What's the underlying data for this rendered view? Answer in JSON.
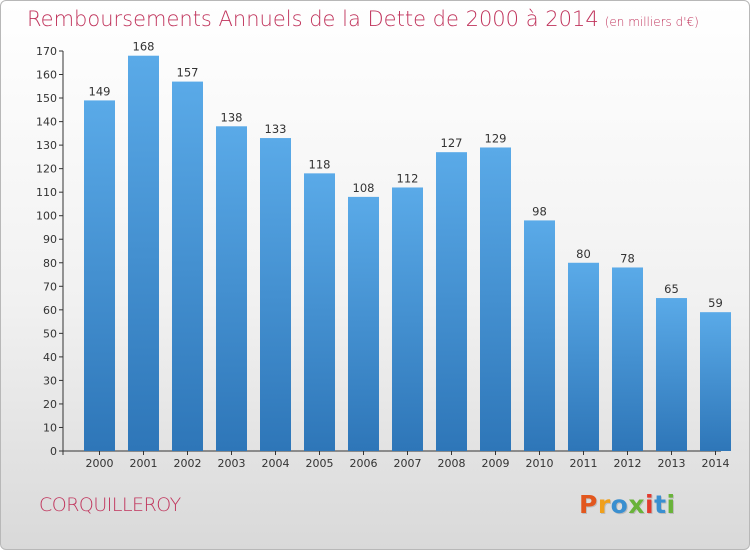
{
  "title": "Remboursements Annuels de la Dette de 2000 à 2014",
  "unit": "(en milliers d'€)",
  "city": "CORQUILLEROY",
  "logo": "Proxiti",
  "colors": {
    "title": "#c0345c",
    "bar_top": "#5aaae8",
    "bar_bottom": "#2e76b8",
    "logo_letters": [
      "#e2571e",
      "#f0a01c",
      "#3a8fd0",
      "#69b33a",
      "#e23a2e",
      "#3a8fd0",
      "#69b33a"
    ]
  },
  "chart_data": {
    "type": "bar",
    "categories": [
      "2000",
      "2001",
      "2002",
      "2003",
      "2004",
      "2005",
      "2006",
      "2007",
      "2008",
      "2009",
      "2010",
      "2011",
      "2012",
      "2013",
      "2014"
    ],
    "values": [
      149,
      168,
      157,
      138,
      133,
      118,
      108,
      112,
      127,
      129,
      98,
      80,
      78,
      65,
      59
    ],
    "ylim": [
      0,
      170
    ],
    "yticks": [
      0,
      10,
      20,
      30,
      40,
      50,
      60,
      70,
      80,
      90,
      100,
      110,
      120,
      130,
      140,
      150,
      160,
      170
    ],
    "grid": false,
    "data_labels": true
  }
}
